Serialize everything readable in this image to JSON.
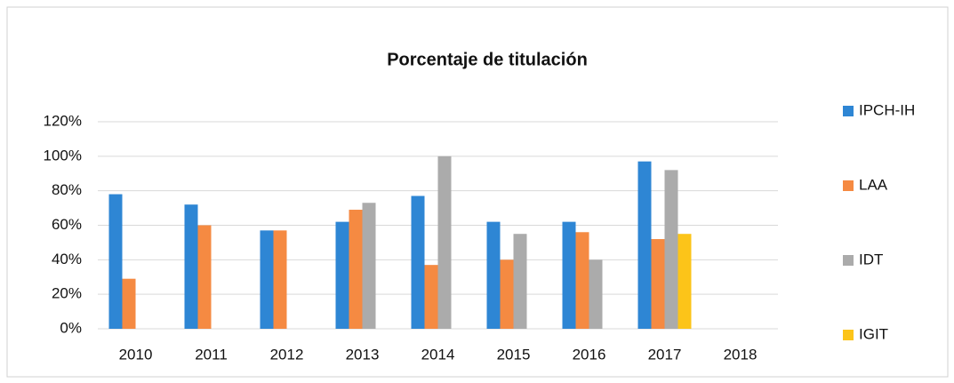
{
  "chart_data": {
    "type": "bar",
    "title": "Porcentaje de titulación",
    "categories": [
      "2010",
      "2011",
      "2012",
      "2013",
      "2014",
      "2015",
      "2016",
      "2017",
      "2018"
    ],
    "series": [
      {
        "name": "IPCH-IH",
        "color": "#2e86d4",
        "values": [
          78,
          72,
          57,
          62,
          77,
          62,
          62,
          97,
          null
        ]
      },
      {
        "name": "LAA",
        "color": "#f58a42",
        "values": [
          29,
          60,
          57,
          69,
          37,
          40,
          56,
          52,
          null
        ]
      },
      {
        "name": "IDT",
        "color": "#ababab",
        "values": [
          null,
          null,
          null,
          73,
          100,
          55,
          40,
          92,
          null
        ]
      },
      {
        "name": "IGIT",
        "color": "#fcc419",
        "values": [
          null,
          null,
          null,
          null,
          null,
          null,
          null,
          55,
          null
        ]
      }
    ],
    "ylim": [
      0,
      120
    ],
    "yticks": [
      {
        "value": 0,
        "label": "0%"
      },
      {
        "value": 20,
        "label": "20%"
      },
      {
        "value": 40,
        "label": "40%"
      },
      {
        "value": 60,
        "label": "60%"
      },
      {
        "value": 80,
        "label": "80%"
      },
      {
        "value": 100,
        "label": "100%"
      },
      {
        "value": 120,
        "label": "120%"
      }
    ],
    "grid": true
  }
}
